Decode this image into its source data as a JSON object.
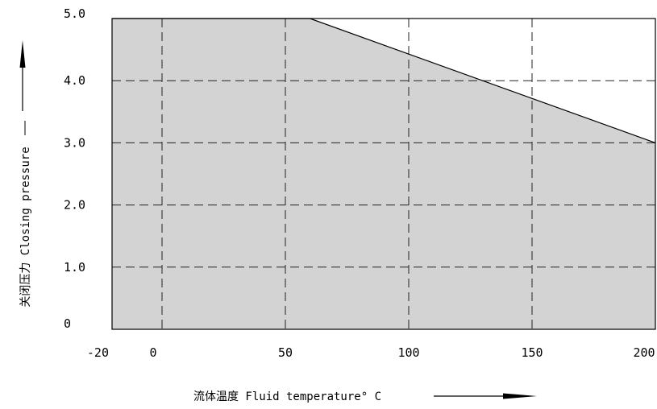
{
  "chart_data": {
    "type": "area",
    "title": "",
    "xlabel": "流体温度 Fluid temperature° C",
    "ylabel": "关闭压力 Closing pressure",
    "xlim": [
      -20,
      200
    ],
    "ylim": [
      0,
      5.0
    ],
    "x_ticks": [
      -20,
      0,
      50,
      100,
      150,
      200
    ],
    "x_tick_labels": [
      "-20",
      "0",
      "50",
      "100",
      "150",
      "200"
    ],
    "y_ticks": [
      0,
      1.0,
      2.0,
      3.0,
      4.0,
      5.0
    ],
    "y_tick_labels": [
      "0",
      "1.0",
      "2.0",
      "3.0",
      "4.0",
      "5.0"
    ],
    "grid": "dashed",
    "fill_color": "#d3d3d3",
    "series": [
      {
        "x": [
          -20,
          60,
          200
        ],
        "y": [
          5.0,
          5.0,
          3.0
        ]
      }
    ]
  }
}
